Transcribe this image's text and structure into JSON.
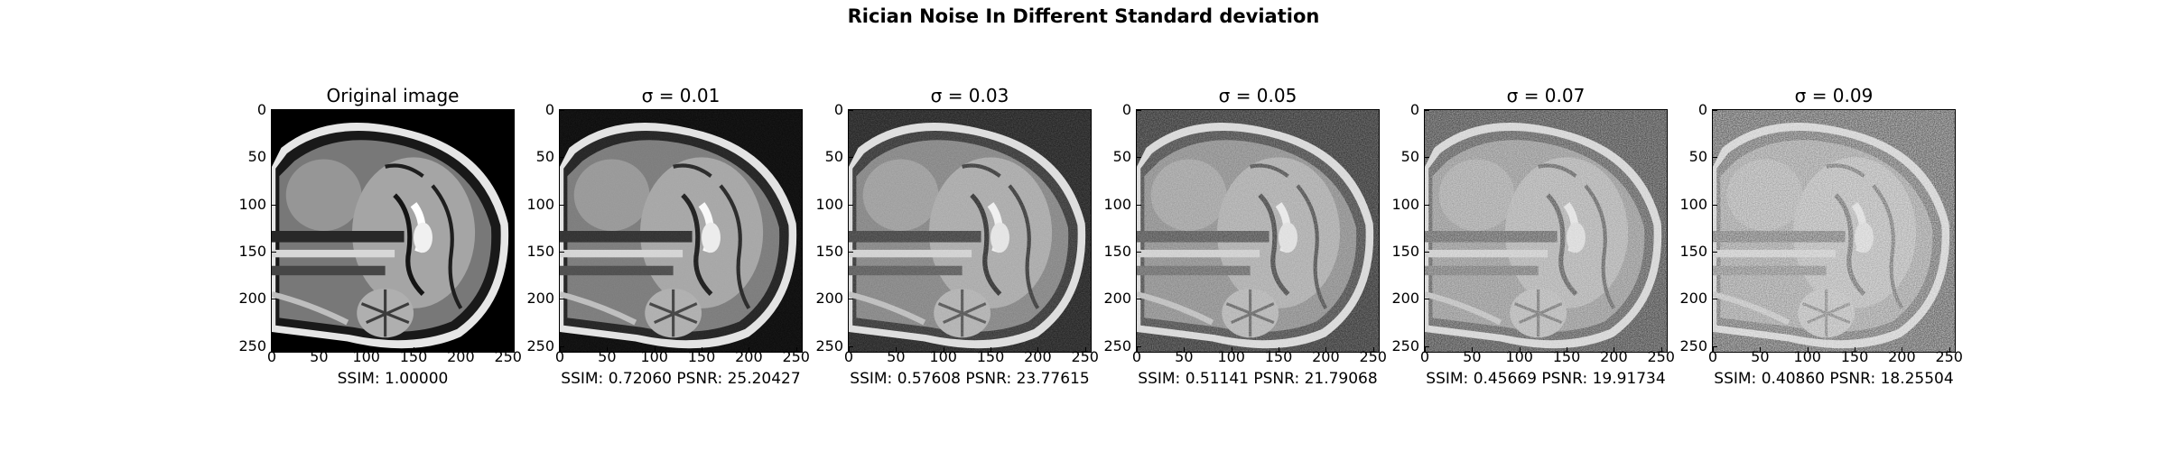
{
  "suptitle": "Rician Noise In Different Standard deviation",
  "axis_ticks": [
    "0",
    "50",
    "100",
    "150",
    "200",
    "250"
  ],
  "panels": [
    {
      "title": "Original image",
      "xlabel": "SSIM: 1.00000",
      "sigma": 0
    },
    {
      "title": "σ = 0.01",
      "xlabel": "SSIM: 0.72060 PSNR: 25.20427",
      "sigma": 0.01
    },
    {
      "title": "σ = 0.03",
      "xlabel": "SSIM: 0.57608 PSNR: 23.77615",
      "sigma": 0.03
    },
    {
      "title": "σ = 0.05",
      "xlabel": "SSIM: 0.51141 PSNR: 21.79068",
      "sigma": 0.05
    },
    {
      "title": "σ = 0.07",
      "xlabel": "SSIM: 0.45669 PSNR: 19.91734",
      "sigma": 0.07
    },
    {
      "title": "σ = 0.09",
      "xlabel": "SSIM: 0.40860 PSNR: 18.25504",
      "sigma": 0.09
    }
  ]
}
